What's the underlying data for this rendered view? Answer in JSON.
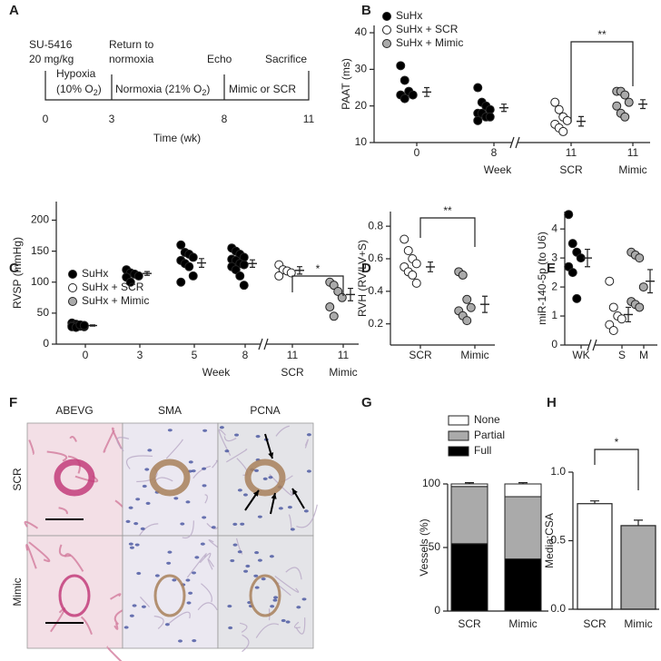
{
  "timeline": {
    "label": "A",
    "annotations": [
      [
        "SU-5416",
        "20 mg/kg"
      ],
      [
        "Return to",
        "normoxia"
      ],
      [
        "Echo"
      ],
      [
        "Sacrifice"
      ]
    ],
    "phases": [
      {
        "title": "Hypoxia",
        "pre": "(10% O",
        "sub": "2",
        "post": ")"
      },
      {
        "pre": "Normoxia (21% O",
        "sub": "2",
        "post": ")"
      },
      {
        "pre": "Mimic or SCR"
      }
    ],
    "times": [
      "0",
      "3",
      "8",
      "11"
    ],
    "xlabel": "Time (wk)"
  },
  "micrographs": {
    "label": "F",
    "columns": [
      "ABEVG",
      "SMA",
      "PCNA"
    ],
    "rows": [
      "SCR",
      "Mimic"
    ]
  },
  "chart_data": [
    {
      "type": "strip",
      "label": "B",
      "ylabel": "PAAT (ms)",
      "ylim": [
        10,
        42
      ],
      "yticks": [
        10,
        20,
        30,
        40
      ],
      "categories": [
        "0",
        "8",
        "11",
        "11"
      ],
      "subcategories": [
        null,
        null,
        "SCR",
        "Mimic"
      ],
      "xlabel": "Week",
      "axis_break_after": 1,
      "category_colors": [
        "#000000",
        "#000000",
        "#ffffff",
        "#aaaaaa"
      ],
      "legend": [
        {
          "name": "SuHx",
          "color": "#000000"
        },
        {
          "name": "SuHx + SCR",
          "color": "#ffffff"
        },
        {
          "name": "SuHx + Mimic",
          "color": "#aaaaaa"
        }
      ],
      "values": [
        [
          31,
          27,
          24,
          23,
          23,
          22
        ],
        [
          25,
          21,
          20,
          19,
          18,
          18,
          17,
          17,
          16
        ],
        [
          21,
          19,
          17,
          16,
          15,
          14,
          13
        ],
        [
          24,
          24,
          23,
          21,
          20,
          18,
          17
        ]
      ],
      "means": [
        23.8,
        19.5,
        15.8,
        20.5
      ],
      "errors": [
        1.2,
        1,
        1.3,
        1.2
      ],
      "significance": {
        "text": "**",
        "between": [
          2,
          3
        ]
      }
    },
    {
      "type": "strip",
      "label": "C",
      "ylabel": "RVSP (mmHg)",
      "ylim": [
        0,
        230
      ],
      "yticks": [
        0,
        50,
        100,
        150,
        200
      ],
      "categories": [
        "0",
        "3",
        "5",
        "8",
        "11",
        "11"
      ],
      "subcategories": [
        null,
        null,
        null,
        null,
        "SCR",
        "Mimic"
      ],
      "xlabel": "Week",
      "axis_break_after": 3,
      "category_colors": [
        "#000000",
        "#000000",
        "#000000",
        "#000000",
        "#ffffff",
        "#aaaaaa"
      ],
      "legend": [
        {
          "name": "SuHx",
          "color": "#000000"
        },
        {
          "name": "SuHx + SCR",
          "color": "#ffffff"
        },
        {
          "name": "SuHx + Mimic",
          "color": "#aaaaaa"
        }
      ],
      "values": [
        [
          34,
          32,
          31,
          30,
          30,
          29,
          29,
          28,
          28,
          27,
          31,
          30
        ],
        [
          120,
          115,
          113,
          110,
          108,
          100
        ],
        [
          160,
          148,
          145,
          140,
          135,
          130,
          125,
          110,
          100
        ],
        [
          155,
          150,
          145,
          140,
          137,
          135,
          130,
          128,
          125,
          120,
          110,
          95
        ],
        [
          128,
          120,
          118,
          115,
          110
        ],
        [
          100,
          95,
          85,
          75,
          60,
          45
        ]
      ],
      "means": [
        30,
        114,
        131,
        130,
        119,
        80
      ],
      "errors": [
        1,
        3,
        7,
        6,
        6,
        10
      ],
      "significance": {
        "text": "*",
        "between": [
          4,
          5
        ]
      }
    },
    {
      "type": "strip",
      "label": "D",
      "ylabel": "RVH (RV/LV+S)",
      "ylim": [
        0.07,
        0.89
      ],
      "yticks": [
        0.2,
        0.4,
        0.6,
        0.8
      ],
      "categories": [
        "SCR",
        "Mimic"
      ],
      "category_colors": [
        "#ffffff",
        "#aaaaaa"
      ],
      "values": [
        [
          0.72,
          0.65,
          0.6,
          0.57,
          0.55,
          0.52,
          0.5,
          0.45
        ],
        [
          0.52,
          0.5,
          0.35,
          0.3,
          0.28,
          0.25,
          0.22
        ]
      ],
      "means": [
        0.55,
        0.32
      ],
      "errors": [
        0.03,
        0.05
      ],
      "significance": {
        "text": "**",
        "between": [
          0,
          1
        ]
      }
    },
    {
      "type": "strip",
      "label": "E",
      "ylabel": "miR-140-5p (to U6)",
      "ylim": [
        0,
        4.6
      ],
      "yticks": [
        0,
        1,
        2,
        3,
        4
      ],
      "categories": [
        "WK",
        "S",
        "M"
      ],
      "axis_break_after": 0,
      "category_colors": [
        "#000000",
        "#ffffff",
        "#aaaaaa"
      ],
      "values": [
        [
          4.5,
          3.5,
          3.2,
          3.0,
          2.7,
          2.5,
          1.6
        ],
        [
          2.2,
          1.3,
          1.0,
          0.9,
          0.7,
          0.5
        ],
        [
          3.2,
          3.1,
          3.0,
          2.0,
          1.5,
          1.4,
          1.3
        ]
      ],
      "means": [
        3.0,
        1.05,
        2.2
      ],
      "errors": [
        0.3,
        0.25,
        0.4
      ]
    },
    {
      "type": "stacked_bar",
      "label": "G",
      "ylabel": "Vessels (%)",
      "ylim": [
        0,
        100
      ],
      "yticks": [
        0,
        50,
        100
      ],
      "categories": [
        "SCR",
        "Mimic"
      ],
      "series": [
        {
          "name": "Full",
          "color": "#000000",
          "values": [
            53,
            41
          ],
          "errors": [
            2,
            2
          ]
        },
        {
          "name": "Partial",
          "color": "#aaaaaa",
          "values": [
            45,
            49
          ],
          "errors": [
            2,
            2
          ]
        },
        {
          "name": "None",
          "color": "#ffffff",
          "values": [
            2,
            10
          ],
          "errors": [
            1,
            1
          ]
        }
      ]
    },
    {
      "type": "bar",
      "label": "H",
      "ylabel": "Media:CSA",
      "ylim": [
        0,
        1
      ],
      "yticks": [
        {
          "value": 0,
          "label": "0.0"
        },
        0.5,
        {
          "value": 1,
          "label": "1.0"
        }
      ],
      "categories": [
        "SCR",
        "Mimic"
      ],
      "values": [
        0.77,
        0.61
      ],
      "errors": [
        0.02,
        0.04
      ],
      "colors": [
        "#ffffff",
        "#aaaaaa"
      ],
      "significance": {
        "text": "*",
        "between": [
          0,
          1
        ]
      }
    }
  ]
}
